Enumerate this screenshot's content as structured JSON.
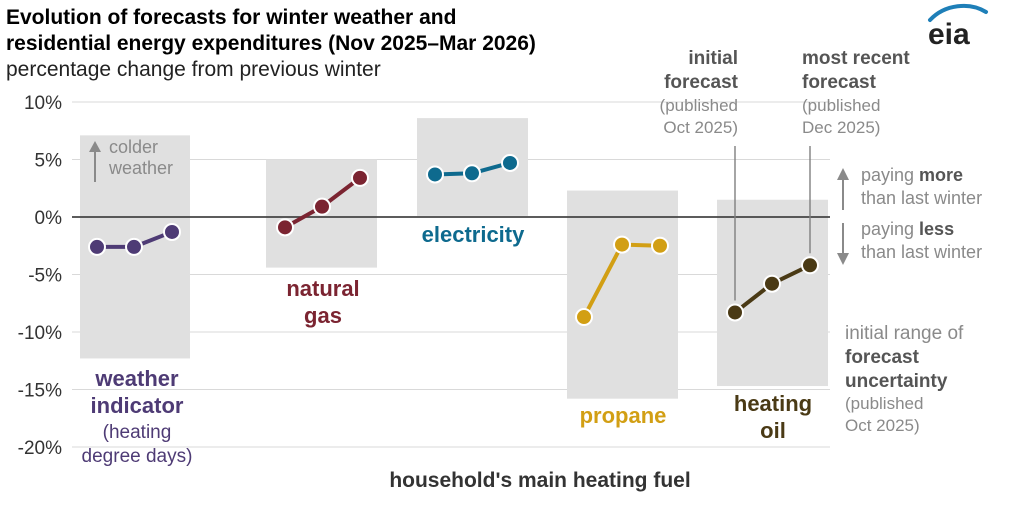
{
  "chart_data": {
    "type": "line",
    "title_line1": "Evolution of forecasts for winter weather and",
    "title_line2": "residential energy expenditures (Nov 2025–Mar 2026)",
    "subtitle": "percentage change from previous winter",
    "logo": "eia",
    "xlabel": "household's main heating fuel",
    "ylim": [
      -20,
      10
    ],
    "yticks": [
      10,
      5,
      0,
      -5,
      -10,
      -15,
      -20
    ],
    "ytick_labels": [
      "10%",
      "5%",
      "0%",
      "-5%",
      "-10%",
      "-15%",
      "-20%"
    ],
    "series": [
      {
        "name": "weather indicator",
        "label_lines": [
          "weather",
          "indicator"
        ],
        "sub_lines": [
          "(heating",
          "degree days)"
        ],
        "color": "#4e3b75",
        "values": [
          -2.6,
          -2.6,
          -1.3
        ],
        "range": [
          -12.3,
          7.1
        ]
      },
      {
        "name": "natural gas",
        "label_lines": [
          "natural",
          "gas"
        ],
        "sub_lines": [],
        "color": "#7b2431",
        "values": [
          -0.9,
          0.9,
          3.4
        ],
        "range": [
          -4.4,
          5.0
        ]
      },
      {
        "name": "electricity",
        "label_lines": [
          "electricity"
        ],
        "sub_lines": [],
        "color": "#0e6a8e",
        "values": [
          3.7,
          3.8,
          4.7
        ],
        "range": [
          0.1,
          8.6
        ]
      },
      {
        "name": "propane",
        "label_lines": [
          "propane"
        ],
        "sub_lines": [],
        "color": "#d29f14",
        "values": [
          -8.7,
          -2.4,
          -2.5
        ],
        "range": [
          -15.8,
          2.3
        ]
      },
      {
        "name": "heating oil",
        "label_lines": [
          "heating",
          "oil"
        ],
        "sub_lines": [],
        "color": "#4a3a15",
        "values": [
          -8.3,
          -5.8,
          -4.2
        ],
        "range": [
          -14.7,
          1.5
        ]
      }
    ],
    "annotations": {
      "colder_weather": [
        "colder",
        "weather"
      ],
      "initial_forecast": [
        "initial",
        "forecast"
      ],
      "initial_published": [
        "(published",
        "Oct 2025)"
      ],
      "recent_forecast": [
        "most recent",
        "forecast"
      ],
      "recent_published": [
        "(published",
        "Dec 2025)"
      ],
      "paying_more": [
        "paying ",
        "more",
        "than last winter"
      ],
      "paying_less": [
        "paying ",
        "less",
        "than last winter"
      ],
      "uncertainty": [
        "initial range of",
        "forecast",
        "uncertainty",
        "(published",
        "Oct 2025)"
      ]
    }
  },
  "colors": {
    "range_box": "#e0e0e0",
    "grid": "#d9d9d9",
    "zero_line": "#444444",
    "annotation_text": "#8a8a8a",
    "annotation_bold": "#555555",
    "leader_line": "#7f7f7f",
    "title_text": "#000000",
    "axis_label": "#333333"
  }
}
